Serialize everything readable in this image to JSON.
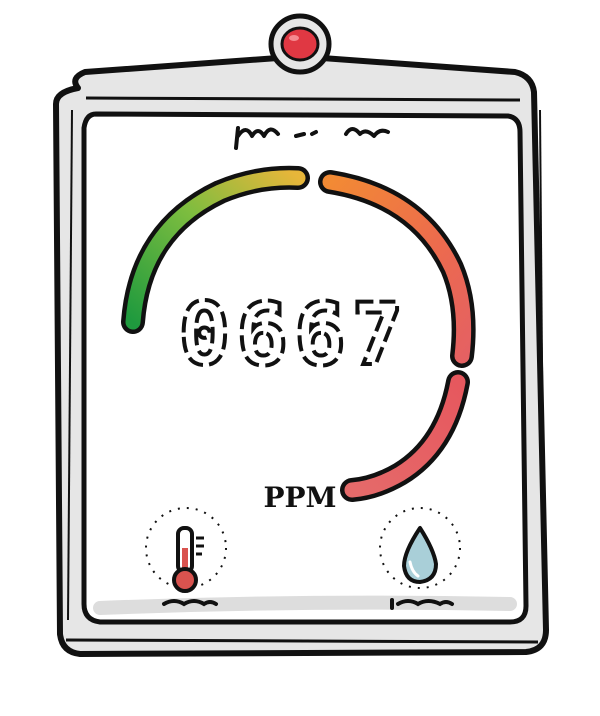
{
  "device": {
    "reading": "0667",
    "unit": "PPM",
    "button_color": "#e03843",
    "frame_color": "#e4e4e4",
    "screen_color": "#ffffff"
  },
  "gauge": {
    "level": 0.667,
    "colors": {
      "green": "#2e9d3c",
      "yellow": "#d6b534",
      "orange": "#f08a3a",
      "red": "#e56162"
    }
  },
  "icons": {
    "temperature": "thermometer-icon",
    "humidity": "water-drop-icon",
    "thermometer_fill": "#d9534f",
    "drop_fill": "#a9cfd8"
  },
  "chart_data": {
    "type": "gauge",
    "title": "",
    "value": 667,
    "display": "0667",
    "unit": "PPM",
    "segments": [
      "green",
      "yellow",
      "orange",
      "red"
    ]
  }
}
